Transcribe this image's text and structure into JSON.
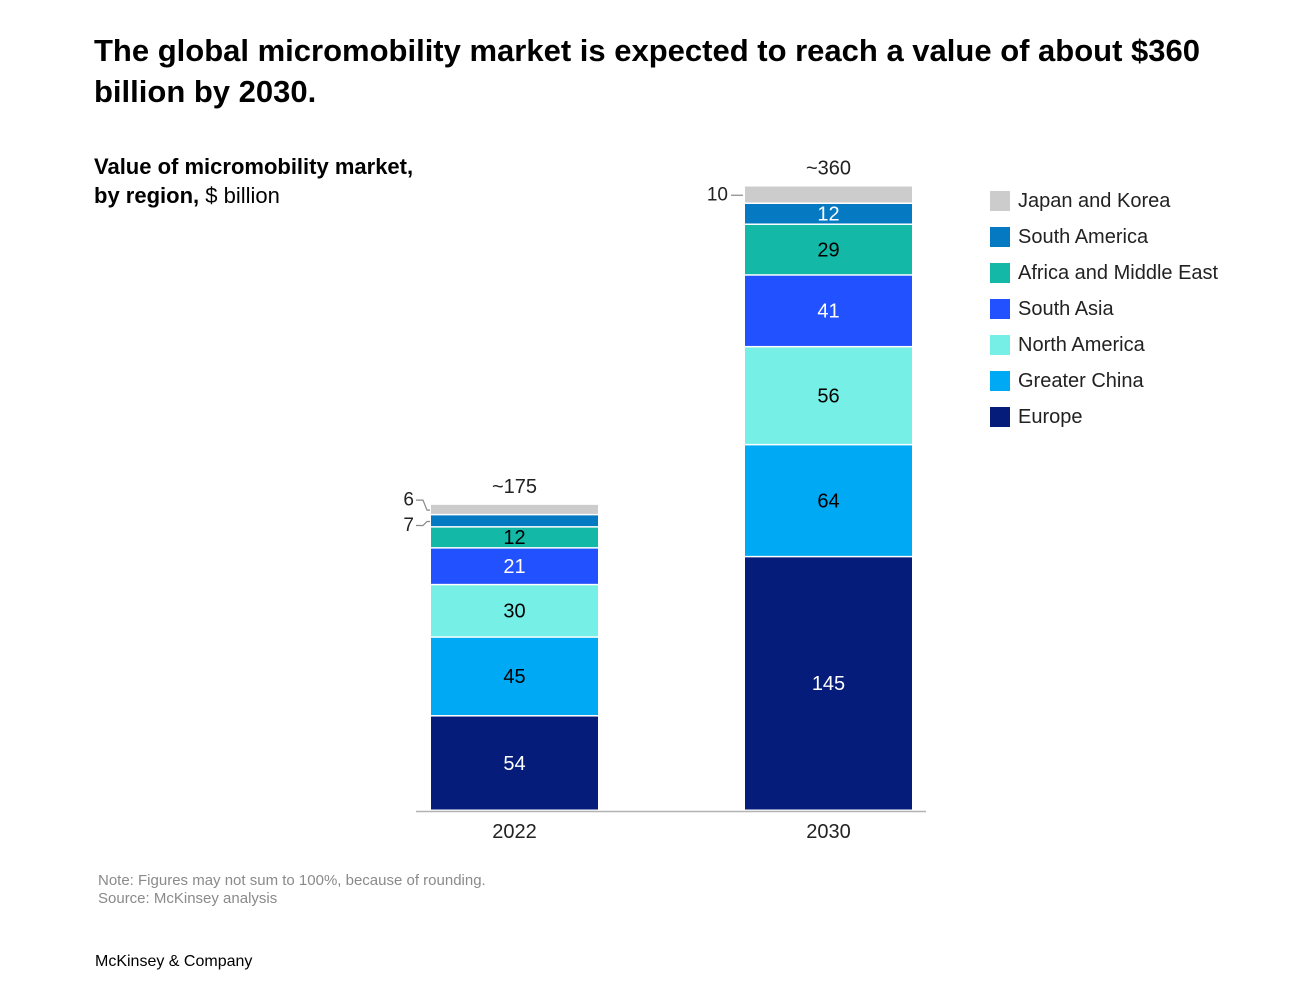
{
  "headline": "The global micromobility market is expected to reach a value of about $360 billion by 2030.",
  "subtitle": {
    "line1": "Value of micromobility market,",
    "line2_bold": "by region,",
    "line2_unit": " $ billion"
  },
  "chart_data": {
    "type": "bar",
    "stacked": true,
    "categories": [
      "2022",
      "2030"
    ],
    "totals_labels": [
      "~175",
      "~360"
    ],
    "series": [
      {
        "name": "Europe",
        "values": [
          54,
          145
        ],
        "color": "#051c7a",
        "label_color": "#ffffff"
      },
      {
        "name": "Greater China",
        "values": [
          45,
          64
        ],
        "color": "#00a9f4",
        "label_color": "#000000"
      },
      {
        "name": "North America",
        "values": [
          30,
          56
        ],
        "color": "#76efe6",
        "label_color": "#000000"
      },
      {
        "name": "South Asia",
        "values": [
          21,
          41
        ],
        "color": "#2251ff",
        "label_color": "#ffffff"
      },
      {
        "name": "Africa and Middle East",
        "values": [
          12,
          29
        ],
        "color": "#14b8a6",
        "label_color": "#000000"
      },
      {
        "name": "South America",
        "values": [
          7,
          12
        ],
        "color": "#0679c3",
        "label_color": "#ffffff"
      },
      {
        "name": "Japan and Korea",
        "values": [
          6,
          10
        ],
        "color": "#cccccc",
        "label_color": "#000000"
      }
    ],
    "legend_order": [
      "Japan and Korea",
      "South America",
      "Africa and Middle East",
      "South Asia",
      "North America",
      "Greater China",
      "Europe"
    ],
    "legend_position": "right",
    "grid": false
  },
  "note": "Note: Figures may not sum to 100%, because of rounding.",
  "source": "Source: McKinsey analysis",
  "brand": "McKinsey & Company"
}
